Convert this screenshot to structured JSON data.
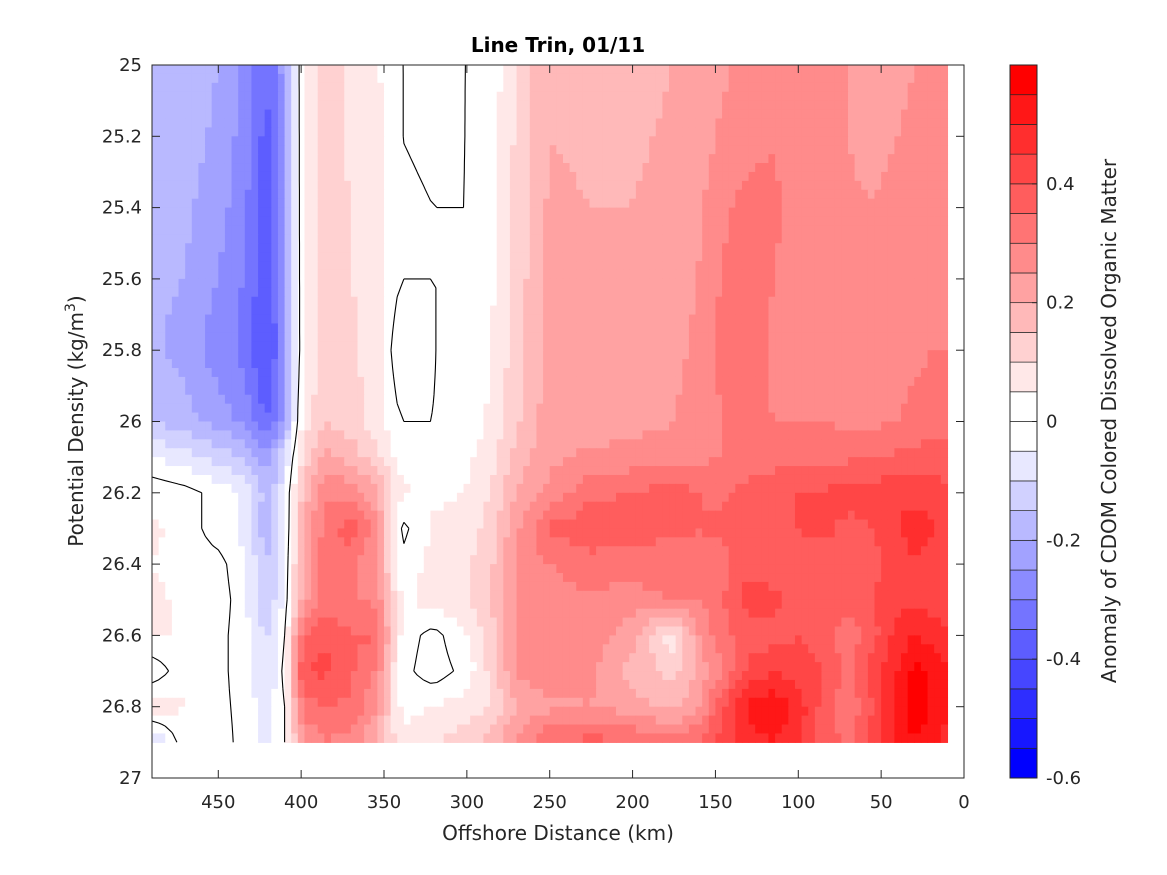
{
  "chart_data": {
    "type": "heatmap",
    "title": "Line Trin, 01/11",
    "xlabel": "Offshore Distance (km)",
    "ylabel": "Potential Density (kg/m",
    "ylabel_sup": "3",
    "ylabel_close": ")",
    "colorbar_label": "Anomaly of CDOM Colored Dissolved Organic Matter",
    "xlim": [
      490,
      0
    ],
    "ylim": [
      25,
      27
    ],
    "x_reversed": true,
    "y_reversed": true,
    "x_ticks": [
      450,
      400,
      350,
      300,
      250,
      200,
      150,
      100,
      50,
      0
    ],
    "y_ticks": [
      25,
      25.2,
      25.4,
      25.6,
      25.8,
      26,
      26.2,
      26.4,
      26.6,
      26.8,
      27
    ],
    "y_tick_labels": [
      "25",
      "25.2",
      "25.4",
      "25.6",
      "25.8",
      "26",
      "26.2",
      "26.4",
      "26.6",
      "26.8",
      "27"
    ],
    "clim": [
      -0.6,
      0.6
    ],
    "colorbar_ticks": [
      -0.6,
      -0.4,
      -0.2,
      0,
      0.2,
      0.4
    ],
    "colorbar_tick_labels": [
      "-0.6",
      "-0.4",
      "-0.2",
      "0",
      "0.2",
      "0.4"
    ],
    "colormap": "blue-white-red",
    "color_negative": "#0000ff",
    "color_zero": "#ffffff",
    "color_positive": "#ff0000",
    "contour_level": 0,
    "grid": false,
    "data_x_range": [
      490,
      10
    ],
    "data_y_range": [
      25,
      26.9
    ],
    "x": [
      490,
      470,
      450,
      435,
      420,
      410,
      400,
      385,
      370,
      355,
      340,
      320,
      300,
      285,
      270,
      250,
      225,
      200,
      175,
      160,
      145,
      130,
      115,
      100,
      85,
      70,
      55,
      40,
      30,
      20,
      10
    ],
    "y": [
      25.0,
      25.2,
      25.4,
      25.6,
      25.8,
      26.0,
      26.1,
      26.2,
      26.3,
      26.4,
      26.5,
      26.6,
      26.7,
      26.8,
      26.9
    ],
    "z": [
      [
        -0.18,
        -0.17,
        -0.2,
        -0.26,
        -0.36,
        -0.22,
        0.04,
        0.12,
        0.09,
        0.06,
        0.0,
        -0.01,
        0.0,
        0.02,
        0.1,
        0.2,
        0.18,
        0.18,
        0.2,
        0.22,
        0.24,
        0.27,
        0.29,
        0.26,
        0.25,
        0.25,
        0.22,
        0.24,
        0.25,
        0.27,
        0.28
      ],
      [
        -0.18,
        -0.18,
        -0.21,
        -0.27,
        -0.38,
        -0.23,
        0.04,
        0.12,
        0.09,
        0.07,
        0.0,
        -0.01,
        0.0,
        0.03,
        0.11,
        0.2,
        0.19,
        0.19,
        0.21,
        0.23,
        0.26,
        0.28,
        0.3,
        0.27,
        0.26,
        0.25,
        0.23,
        0.25,
        0.26,
        0.28,
        0.29
      ],
      [
        -0.19,
        -0.19,
        -0.23,
        -0.28,
        -0.39,
        -0.24,
        0.04,
        0.13,
        0.1,
        0.07,
        0.01,
        0.0,
        0.0,
        0.03,
        0.12,
        0.21,
        0.2,
        0.2,
        0.22,
        0.24,
        0.29,
        0.32,
        0.31,
        0.28,
        0.27,
        0.26,
        0.25,
        0.27,
        0.27,
        0.29,
        0.3
      ],
      [
        -0.19,
        -0.2,
        -0.25,
        -0.3,
        -0.4,
        -0.25,
        0.04,
        0.13,
        0.1,
        0.08,
        0.0,
        0.0,
        0.0,
        0.04,
        0.12,
        0.22,
        0.21,
        0.21,
        0.23,
        0.25,
        0.31,
        0.33,
        0.3,
        0.28,
        0.28,
        0.26,
        0.26,
        0.28,
        0.28,
        0.29,
        0.29
      ],
      [
        -0.19,
        -0.22,
        -0.28,
        -0.31,
        -0.42,
        -0.26,
        0.04,
        0.13,
        0.11,
        0.08,
        -0.05,
        0.0,
        0.01,
        0.05,
        0.13,
        0.22,
        0.22,
        0.22,
        0.24,
        0.26,
        0.32,
        0.33,
        0.29,
        0.3,
        0.29,
        0.27,
        0.27,
        0.29,
        0.29,
        0.3,
        0.3
      ],
      [
        -0.15,
        -0.18,
        -0.22,
        -0.26,
        -0.36,
        -0.22,
        0.06,
        0.15,
        0.12,
        0.08,
        0.0,
        0.0,
        0.02,
        0.06,
        0.14,
        0.23,
        0.22,
        0.23,
        0.25,
        0.27,
        0.3,
        0.31,
        0.3,
        0.3,
        0.3,
        0.29,
        0.29,
        0.3,
        0.31,
        0.32,
        0.32
      ],
      [
        -0.05,
        -0.08,
        -0.12,
        -0.16,
        -0.24,
        -0.1,
        0.1,
        0.22,
        0.18,
        0.12,
        0.03,
        0.03,
        0.04,
        0.08,
        0.17,
        0.24,
        0.26,
        0.27,
        0.28,
        0.29,
        0.3,
        0.31,
        0.32,
        0.33,
        0.33,
        0.34,
        0.35,
        0.36,
        0.37,
        0.38,
        0.38
      ],
      [
        0.04,
        0.02,
        -0.02,
        -0.05,
        -0.18,
        -0.06,
        0.15,
        0.3,
        0.28,
        0.22,
        0.06,
        0.04,
        0.05,
        0.1,
        0.2,
        0.26,
        0.34,
        0.35,
        0.38,
        0.35,
        0.34,
        0.37,
        0.4,
        0.4,
        0.4,
        0.43,
        0.42,
        0.45,
        0.43,
        0.42,
        0.4
      ],
      [
        0.06,
        0.03,
        -0.03,
        -0.06,
        -0.2,
        -0.07,
        0.2,
        0.32,
        0.38,
        0.28,
        -0.02,
        0.06,
        0.07,
        0.13,
        0.24,
        0.36,
        0.39,
        0.37,
        0.36,
        0.35,
        0.36,
        0.4,
        0.38,
        0.4,
        0.42,
        0.38,
        0.4,
        0.45,
        0.48,
        0.46,
        0.43
      ],
      [
        0.05,
        0.03,
        0.02,
        -0.04,
        -0.16,
        -0.05,
        0.2,
        0.34,
        0.32,
        0.25,
        0.01,
        0.07,
        0.09,
        0.14,
        0.26,
        0.3,
        0.33,
        0.32,
        0.33,
        0.34,
        0.33,
        0.38,
        0.36,
        0.38,
        0.37,
        0.37,
        0.38,
        0.42,
        0.44,
        0.43,
        0.41
      ],
      [
        0.06,
        0.04,
        0.03,
        -0.03,
        -0.14,
        -0.04,
        0.22,
        0.33,
        0.3,
        0.3,
        0.04,
        0.07,
        0.09,
        0.15,
        0.25,
        0.28,
        0.29,
        0.28,
        0.3,
        0.3,
        0.35,
        0.43,
        0.42,
        0.36,
        0.38,
        0.37,
        0.4,
        0.44,
        0.44,
        0.43,
        0.41
      ],
      [
        0.06,
        0.04,
        0.02,
        -0.03,
        -0.12,
        0.0,
        0.34,
        0.4,
        0.35,
        0.36,
        0.03,
        -0.02,
        0.05,
        0.13,
        0.26,
        0.3,
        0.28,
        0.22,
        0.06,
        0.25,
        0.34,
        0.36,
        0.38,
        0.4,
        0.36,
        0.32,
        0.38,
        0.47,
        0.5,
        0.48,
        0.45
      ],
      [
        -0.04,
        0.04,
        0.02,
        -0.03,
        -0.1,
        0.02,
        0.4,
        0.41,
        0.36,
        0.3,
        0.02,
        -0.03,
        0.02,
        0.12,
        0.26,
        0.28,
        0.26,
        0.18,
        0.13,
        0.22,
        0.3,
        0.42,
        0.44,
        0.43,
        0.4,
        0.34,
        0.42,
        0.5,
        0.56,
        0.55,
        0.5
      ],
      [
        0.08,
        0.05,
        0.02,
        -0.02,
        -0.08,
        0.0,
        0.32,
        0.35,
        0.34,
        0.26,
        0.03,
        0.05,
        0.08,
        0.1,
        0.2,
        0.24,
        0.25,
        0.22,
        0.18,
        0.24,
        0.4,
        0.52,
        0.55,
        0.48,
        0.38,
        0.3,
        0.4,
        0.52,
        0.58,
        0.55,
        0.5
      ],
      [
        -0.12,
        0.04,
        0.03,
        -0.02,
        -0.06,
        0.0,
        0.24,
        0.3,
        0.28,
        0.2,
        0.07,
        0.1,
        0.13,
        0.18,
        0.26,
        0.35,
        0.37,
        0.35,
        0.32,
        0.36,
        0.42,
        0.48,
        0.5,
        0.45,
        0.38,
        0.34,
        0.42,
        0.5,
        0.55,
        0.52,
        0.48
      ]
    ]
  }
}
